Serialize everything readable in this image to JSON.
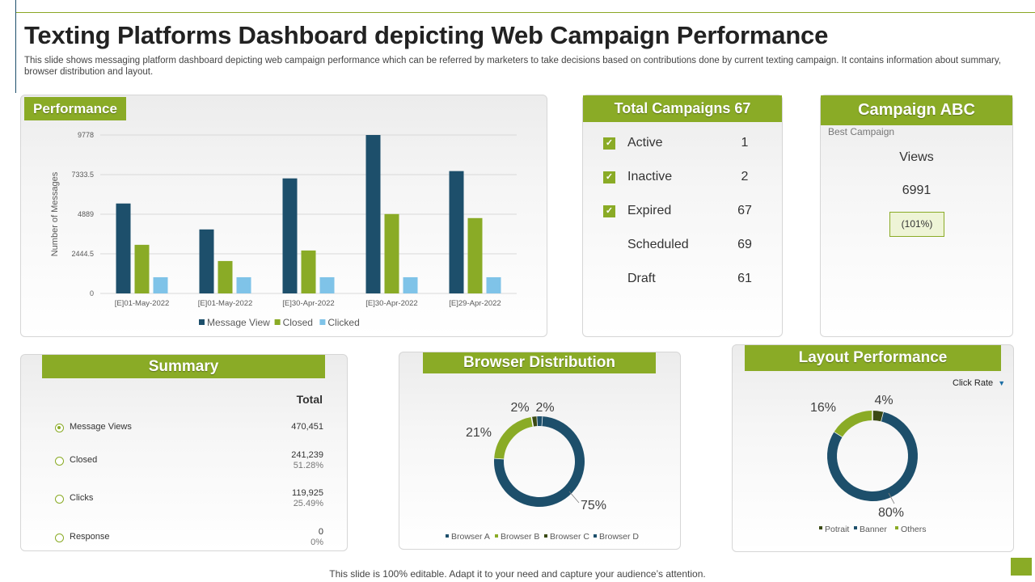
{
  "title": "Texting Platforms Dashboard depicting Web Campaign Performance",
  "subtitle": "This slide shows messaging platform dashboard depicting web campaign performance which can be referred by marketers to take decisions based on contributions done by current texting campaign. It contains information about summary, browser distribution and layout.",
  "colors": {
    "accent": "#8aab26",
    "navy": "#1d4f6b",
    "lightblue": "#7fc3e8",
    "dark_olive": "#3b4a14"
  },
  "performance": {
    "heading": "Performance",
    "chart_data": {
      "type": "bar",
      "title": "Performance",
      "xlabel": "",
      "ylabel": "Number of Messages",
      "categories": [
        "[E]01-May-2022",
        "[E]01-May-2022",
        "[E]30-Apr-2022",
        "[E]30-Apr-2022",
        "[E]29-Apr-2022"
      ],
      "y_ticks": [
        "0",
        "2444.5",
        "4889",
        "7333.5",
        "9778"
      ],
      "ylim": [
        0,
        9778
      ],
      "series": [
        {
          "name": "Message View",
          "color": "#1d4f6b",
          "values": [
            5550,
            3950,
            7100,
            9778,
            7550
          ]
        },
        {
          "name": "Closed",
          "color": "#8aab26",
          "values": [
            3000,
            2000,
            2650,
            4900,
            4650
          ]
        },
        {
          "name": "Clicked",
          "color": "#7fc3e8",
          "values": [
            1000,
            1000,
            1000,
            1000,
            1000
          ]
        }
      ]
    }
  },
  "total_campaigns": {
    "heading": "Total Campaigns 67",
    "rows": [
      {
        "label": "Active",
        "value": "1",
        "checked": true
      },
      {
        "label": "Inactive",
        "value": "2",
        "checked": true
      },
      {
        "label": "Expired",
        "value": "67",
        "checked": true
      },
      {
        "label": "Scheduled",
        "value": "69",
        "checked": false
      },
      {
        "label": "Draft",
        "value": "61",
        "checked": false
      }
    ]
  },
  "campaign_abc": {
    "heading": "Campaign ABC",
    "subheading": "Best Campaign",
    "views_label": "Views",
    "views_value": "6991",
    "change": "(101%)"
  },
  "summary": {
    "heading": "Summary",
    "total_label": "Total",
    "rows": [
      {
        "label": "Message Views",
        "value": "470,451",
        "sub": ""
      },
      {
        "label": "Closed",
        "value": "241,239",
        "sub": "51.28%"
      },
      {
        "label": "Clicks",
        "value": "119,925",
        "sub": "25.49%"
      },
      {
        "label": "Response",
        "value": "0",
        "sub": "0%"
      }
    ]
  },
  "browser_distribution": {
    "heading": "Browser Distribution",
    "chart_data": {
      "type": "pie",
      "title": "Browser Distribution",
      "labels": [
        "Browser A",
        "Browser B",
        "Browser C",
        "Browser D"
      ],
      "values": [
        75,
        21,
        2,
        2
      ],
      "value_labels": [
        "75%",
        "21%",
        "2%",
        "2%"
      ],
      "colors": [
        "#1d4f6b",
        "#8aab26",
        "#3b4a14",
        "#1d4f6b"
      ]
    }
  },
  "layout_performance": {
    "heading": "Layout Performance",
    "dropdown": "Click Rate",
    "chart_data": {
      "type": "pie",
      "title": "Layout Performance",
      "labels": [
        "Potrait",
        "Banner",
        "Others"
      ],
      "values": [
        4,
        80,
        16
      ],
      "value_labels": [
        "4%",
        "80%",
        "16%"
      ],
      "colors": [
        "#3b4a14",
        "#1d4f6b",
        "#8aab26"
      ]
    }
  },
  "footer": "This slide is 100% editable. Adapt it to your need and capture your audience’s attention."
}
